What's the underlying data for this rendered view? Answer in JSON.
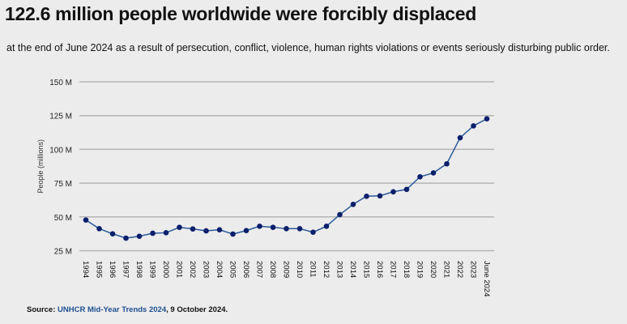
{
  "header": {
    "title": "122.6 million people worldwide were forcibly displaced",
    "subtitle": "at the end of June 2024 as a result of persecution, conflict, violence, human rights violations or events seriously disturbing public order."
  },
  "source": {
    "label": "Source: ",
    "link_text": "UNHCR Mid-Year Trends 2024",
    "suffix": ", 9 October 2024."
  },
  "colors": {
    "line": "#2a5a9a",
    "marker": "#0b1f6b",
    "grid": "#b5b5b5",
    "background": "#ececec"
  },
  "chart_data": {
    "type": "line",
    "title": "",
    "xlabel": "",
    "ylabel": "People (millions)",
    "ylim": [
      25,
      150
    ],
    "yticks": [
      25,
      50,
      75,
      100,
      125,
      150
    ],
    "ytick_labels": [
      "25 M",
      "50 M",
      "75 M",
      "100 M",
      "125 M",
      "150 M"
    ],
    "grid": true,
    "categories": [
      "1994",
      "1995",
      "1996",
      "1997",
      "1998",
      "1999",
      "2000",
      "2001",
      "2002",
      "2003",
      "2004",
      "2005",
      "2006",
      "2007",
      "2008",
      "2009",
      "2010",
      "2011",
      "2012",
      "2013",
      "2014",
      "2015",
      "2016",
      "2017",
      "2018",
      "2019",
      "2020",
      "2021",
      "2022",
      "2023",
      "June 2024"
    ],
    "values": [
      47.7,
      41.3,
      37.5,
      34.3,
      35.7,
      37.9,
      38.3,
      42.3,
      41.1,
      39.7,
      40.5,
      37.3,
      39.9,
      43.1,
      42.3,
      41.3,
      41.3,
      38.7,
      43.1,
      51.7,
      59.3,
      65.3,
      65.6,
      68.6,
      70.4,
      79.7,
      82.6,
      89.3,
      108.6,
      117.4,
      122.6
    ]
  }
}
